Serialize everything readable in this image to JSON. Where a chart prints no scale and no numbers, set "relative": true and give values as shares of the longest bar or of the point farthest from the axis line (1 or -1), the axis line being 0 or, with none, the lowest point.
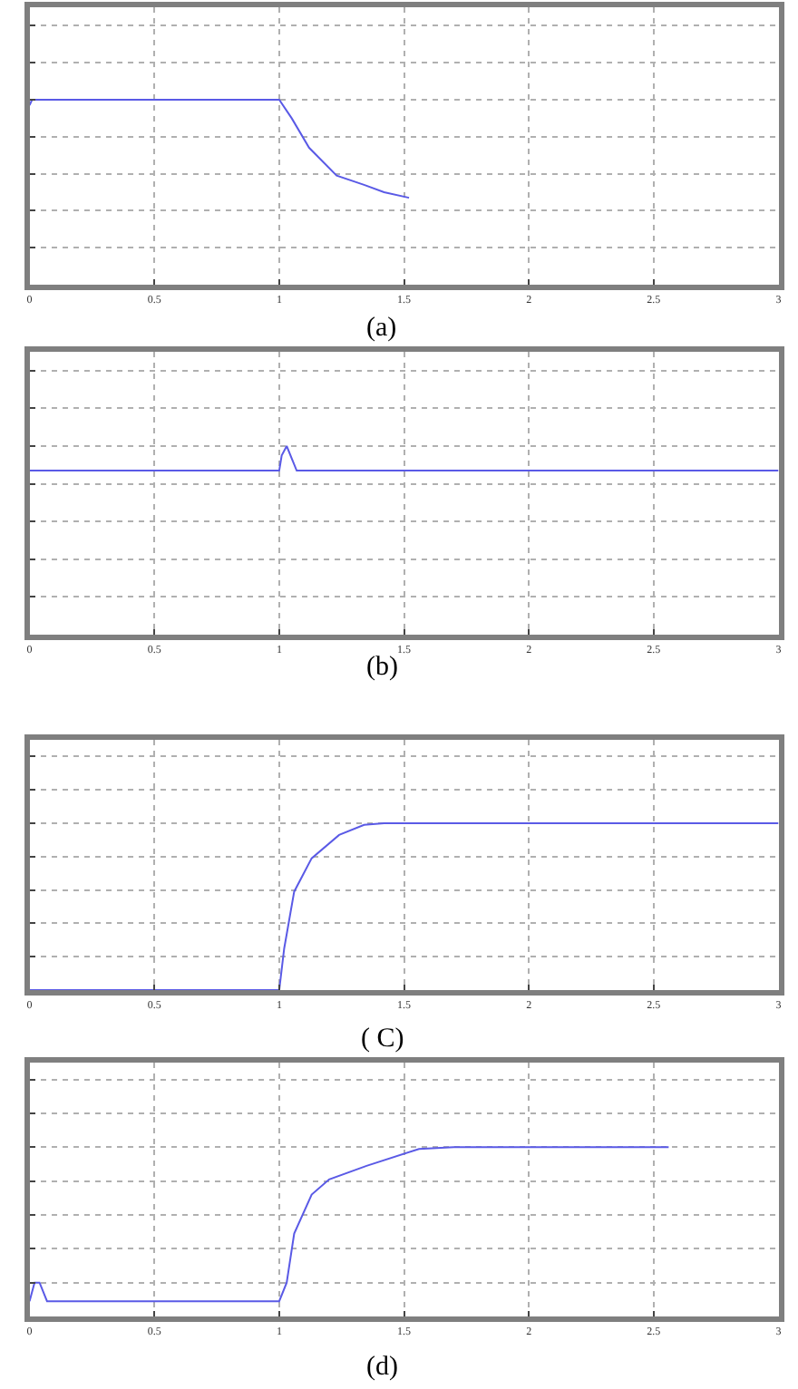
{
  "chart_data": [
    {
      "type": "line",
      "title": "(a)",
      "relative": true,
      "tick_labels": "x",
      "grid": true,
      "xlim": [
        0,
        3
      ],
      "xticks": [
        0,
        0.5,
        1,
        1.5,
        2,
        2.5,
        3
      ],
      "series": [
        {
          "color": "#5a5ae6",
          "x": [
            0,
            0.01,
            0.02,
            1.0,
            1.05,
            1.12,
            1.23,
            1.34,
            1.42,
            1.52
          ],
          "values": [
            0.97,
            1.0,
            1.0,
            1.0,
            0.9,
            0.74,
            0.59,
            0.54,
            0.5,
            0.47
          ]
        }
      ]
    },
    {
      "type": "line",
      "title": "(b)",
      "relative": true,
      "tick_labels": "x",
      "grid": true,
      "xlim": [
        0,
        3
      ],
      "xticks": [
        0,
        0.5,
        1,
        1.5,
        2,
        2.5,
        3
      ],
      "series": [
        {
          "color": "#5a5ae6",
          "x": [
            0,
            1.0,
            1.01,
            1.03,
            1.07,
            3
          ],
          "values": [
            0.87,
            0.87,
            0.95,
            1.0,
            0.87,
            0.87
          ]
        }
      ]
    },
    {
      "type": "line",
      "title": "( C)",
      "relative": true,
      "tick_labels": "x",
      "grid": true,
      "xlim": [
        0,
        3
      ],
      "xticks": [
        0,
        0.5,
        1,
        1.5,
        2,
        2.5,
        3
      ],
      "series": [
        {
          "color": "#5a5ae6",
          "x": [
            0,
            1.0,
            1.02,
            1.06,
            1.13,
            1.24,
            1.34,
            1.42,
            1.5,
            3
          ],
          "values": [
            0,
            0,
            0.25,
            0.59,
            0.79,
            0.93,
            0.99,
            1.0,
            1.0,
            1.0
          ]
        }
      ]
    },
    {
      "type": "line",
      "title": "(d)",
      "relative": true,
      "tick_labels": "x",
      "grid": true,
      "xlim": [
        0,
        3
      ],
      "xticks": [
        0,
        0.5,
        1,
        1.5,
        2,
        2.5,
        3
      ],
      "series": [
        {
          "color": "#5a5ae6",
          "x": [
            0,
            0.02,
            0.04,
            0.07,
            0.1,
            1.0,
            1.03,
            1.06,
            1.13,
            1.2,
            1.35,
            1.56,
            1.7,
            2.56
          ],
          "values": [
            0.09,
            0.2,
            0.2,
            0.09,
            0.09,
            0.09,
            0.2,
            0.49,
            0.72,
            0.81,
            0.89,
            0.99,
            1.0,
            1.0
          ]
        }
      ]
    }
  ]
}
